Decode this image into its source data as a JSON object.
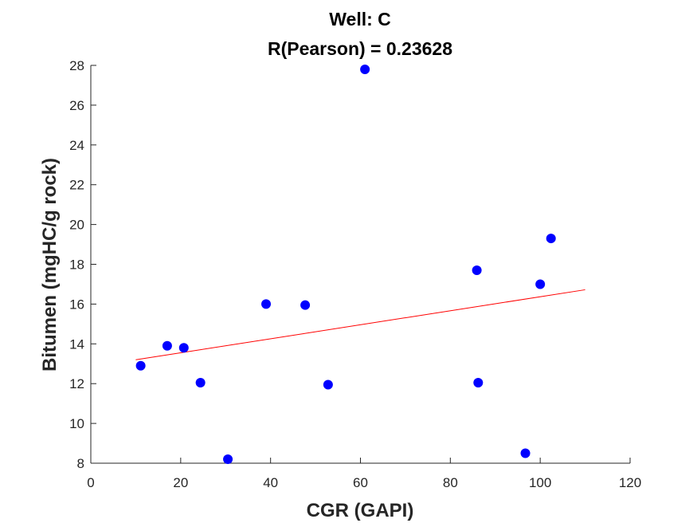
{
  "chart_data": {
    "type": "scatter",
    "title": "Well: C",
    "subtitle": "R(Pearson) = 0.23628",
    "xlabel": "CGR (GAPI)",
    "ylabel": "Bitumen (mgHC/g rock)",
    "xlim": [
      0,
      120
    ],
    "ylim": [
      8,
      28
    ],
    "xticks": [
      0,
      20,
      40,
      60,
      80,
      100,
      120
    ],
    "yticks": [
      8,
      10,
      12,
      14,
      16,
      18,
      20,
      22,
      24,
      26,
      28
    ],
    "grid": false,
    "series": [
      {
        "marker_color": "#0000ff",
        "points": [
          {
            "x": 11.1,
            "y": 12.9
          },
          {
            "x": 17.0,
            "y": 13.9
          },
          {
            "x": 20.7,
            "y": 13.8
          },
          {
            "x": 24.4,
            "y": 12.05
          },
          {
            "x": 30.5,
            "y": 8.2
          },
          {
            "x": 39.0,
            "y": 16.0
          },
          {
            "x": 47.7,
            "y": 15.95
          },
          {
            "x": 52.8,
            "y": 11.95
          },
          {
            "x": 61.0,
            "y": 27.8
          },
          {
            "x": 85.9,
            "y": 17.7
          },
          {
            "x": 86.2,
            "y": 12.05
          },
          {
            "x": 96.7,
            "y": 8.5
          },
          {
            "x": 100.0,
            "y": 17.0
          },
          {
            "x": 102.4,
            "y": 19.3
          }
        ]
      }
    ],
    "fit_line": {
      "color": "#ff0000",
      "x": [
        10,
        110
      ],
      "y": [
        13.2,
        16.72
      ]
    }
  }
}
